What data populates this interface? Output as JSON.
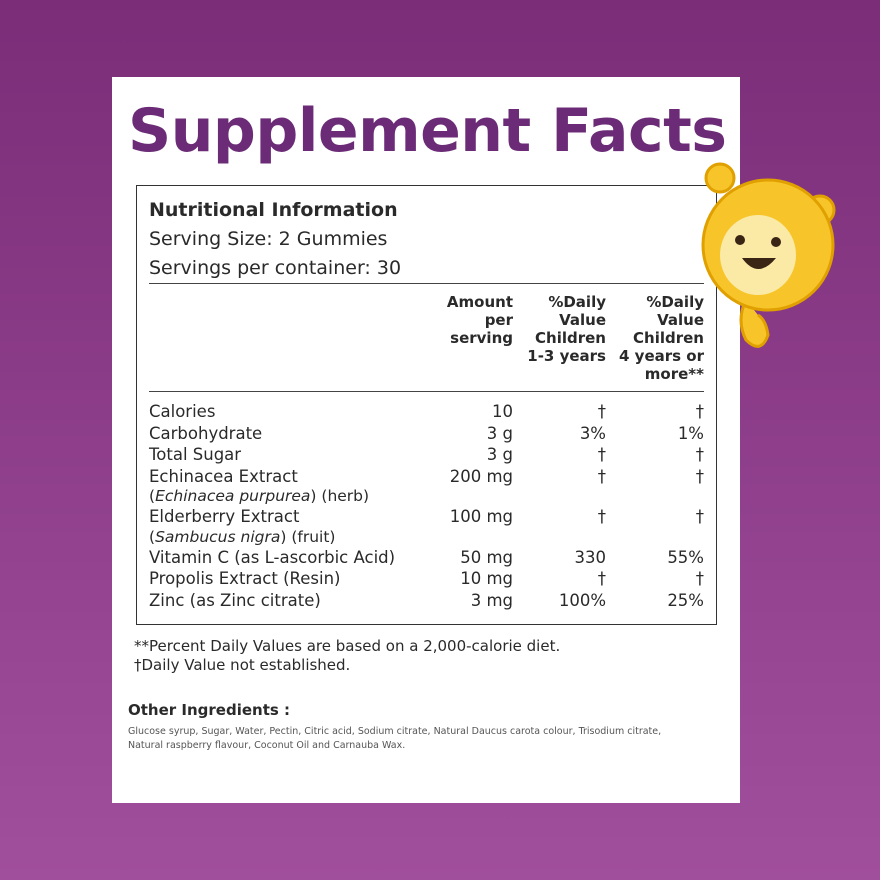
{
  "title": "Supplement Facts",
  "info": {
    "heading": "Nutritional Information",
    "serving_size": "Serving Size: 2 Gummies",
    "servings": "Servings per container: 30"
  },
  "table": {
    "columns": [
      [
        "Amount",
        "per",
        "serving"
      ],
      [
        "%Daily",
        "Value",
        "Children",
        "1-3 years"
      ],
      [
        "%Daily",
        "Value",
        "Children",
        "4 years or",
        "more**"
      ]
    ],
    "rows": [
      {
        "name": "Calories",
        "amount": "10",
        "dv1": "†",
        "dv2": "†"
      },
      {
        "name": "Carbohydrate",
        "amount": "3 g",
        "dv1": "3%",
        "dv2": "1%"
      },
      {
        "name": "Total Sugar",
        "amount": "3 g",
        "dv1": "†",
        "dv2": "†"
      },
      {
        "name": "Echinacea Extract",
        "sub": [
          "(",
          "Echinacea purpurea",
          ") (herb)"
        ],
        "amount": "200 mg",
        "dv1": "†",
        "dv2": "†"
      },
      {
        "name": "Elderberry Extract",
        "sub": [
          "(",
          "Sambucus nigra",
          ") (fruit)"
        ],
        "amount": "100 mg",
        "dv1": "†",
        "dv2": "†"
      },
      {
        "name": "Vitamin C (as L-ascorbic Acid)",
        "amount": "50 mg",
        "dv1": "330",
        "dv2": "55%"
      },
      {
        "name": "Propolis Extract (Resin)",
        "amount": "10 mg",
        "dv1": "†",
        "dv2": "†"
      },
      {
        "name": "Zinc (as Zinc citrate)",
        "amount": "3 mg",
        "dv1": "100%",
        "dv2": "25%"
      }
    ]
  },
  "footnotes": [
    "**Percent Daily Values are based on a 2,000-calorie diet.",
    "†Daily Value not established."
  ],
  "other_ingredients": {
    "title": "Other Ingredients :",
    "text": [
      "Glucose syrup, Sugar, Water,  Pectin, Citric acid, Sodium citrate, Natural Daucus carota colour, Trisodium citrate,",
      "Natural raspberry flavour, Coconut Oil and Carnauba Wax."
    ]
  }
}
